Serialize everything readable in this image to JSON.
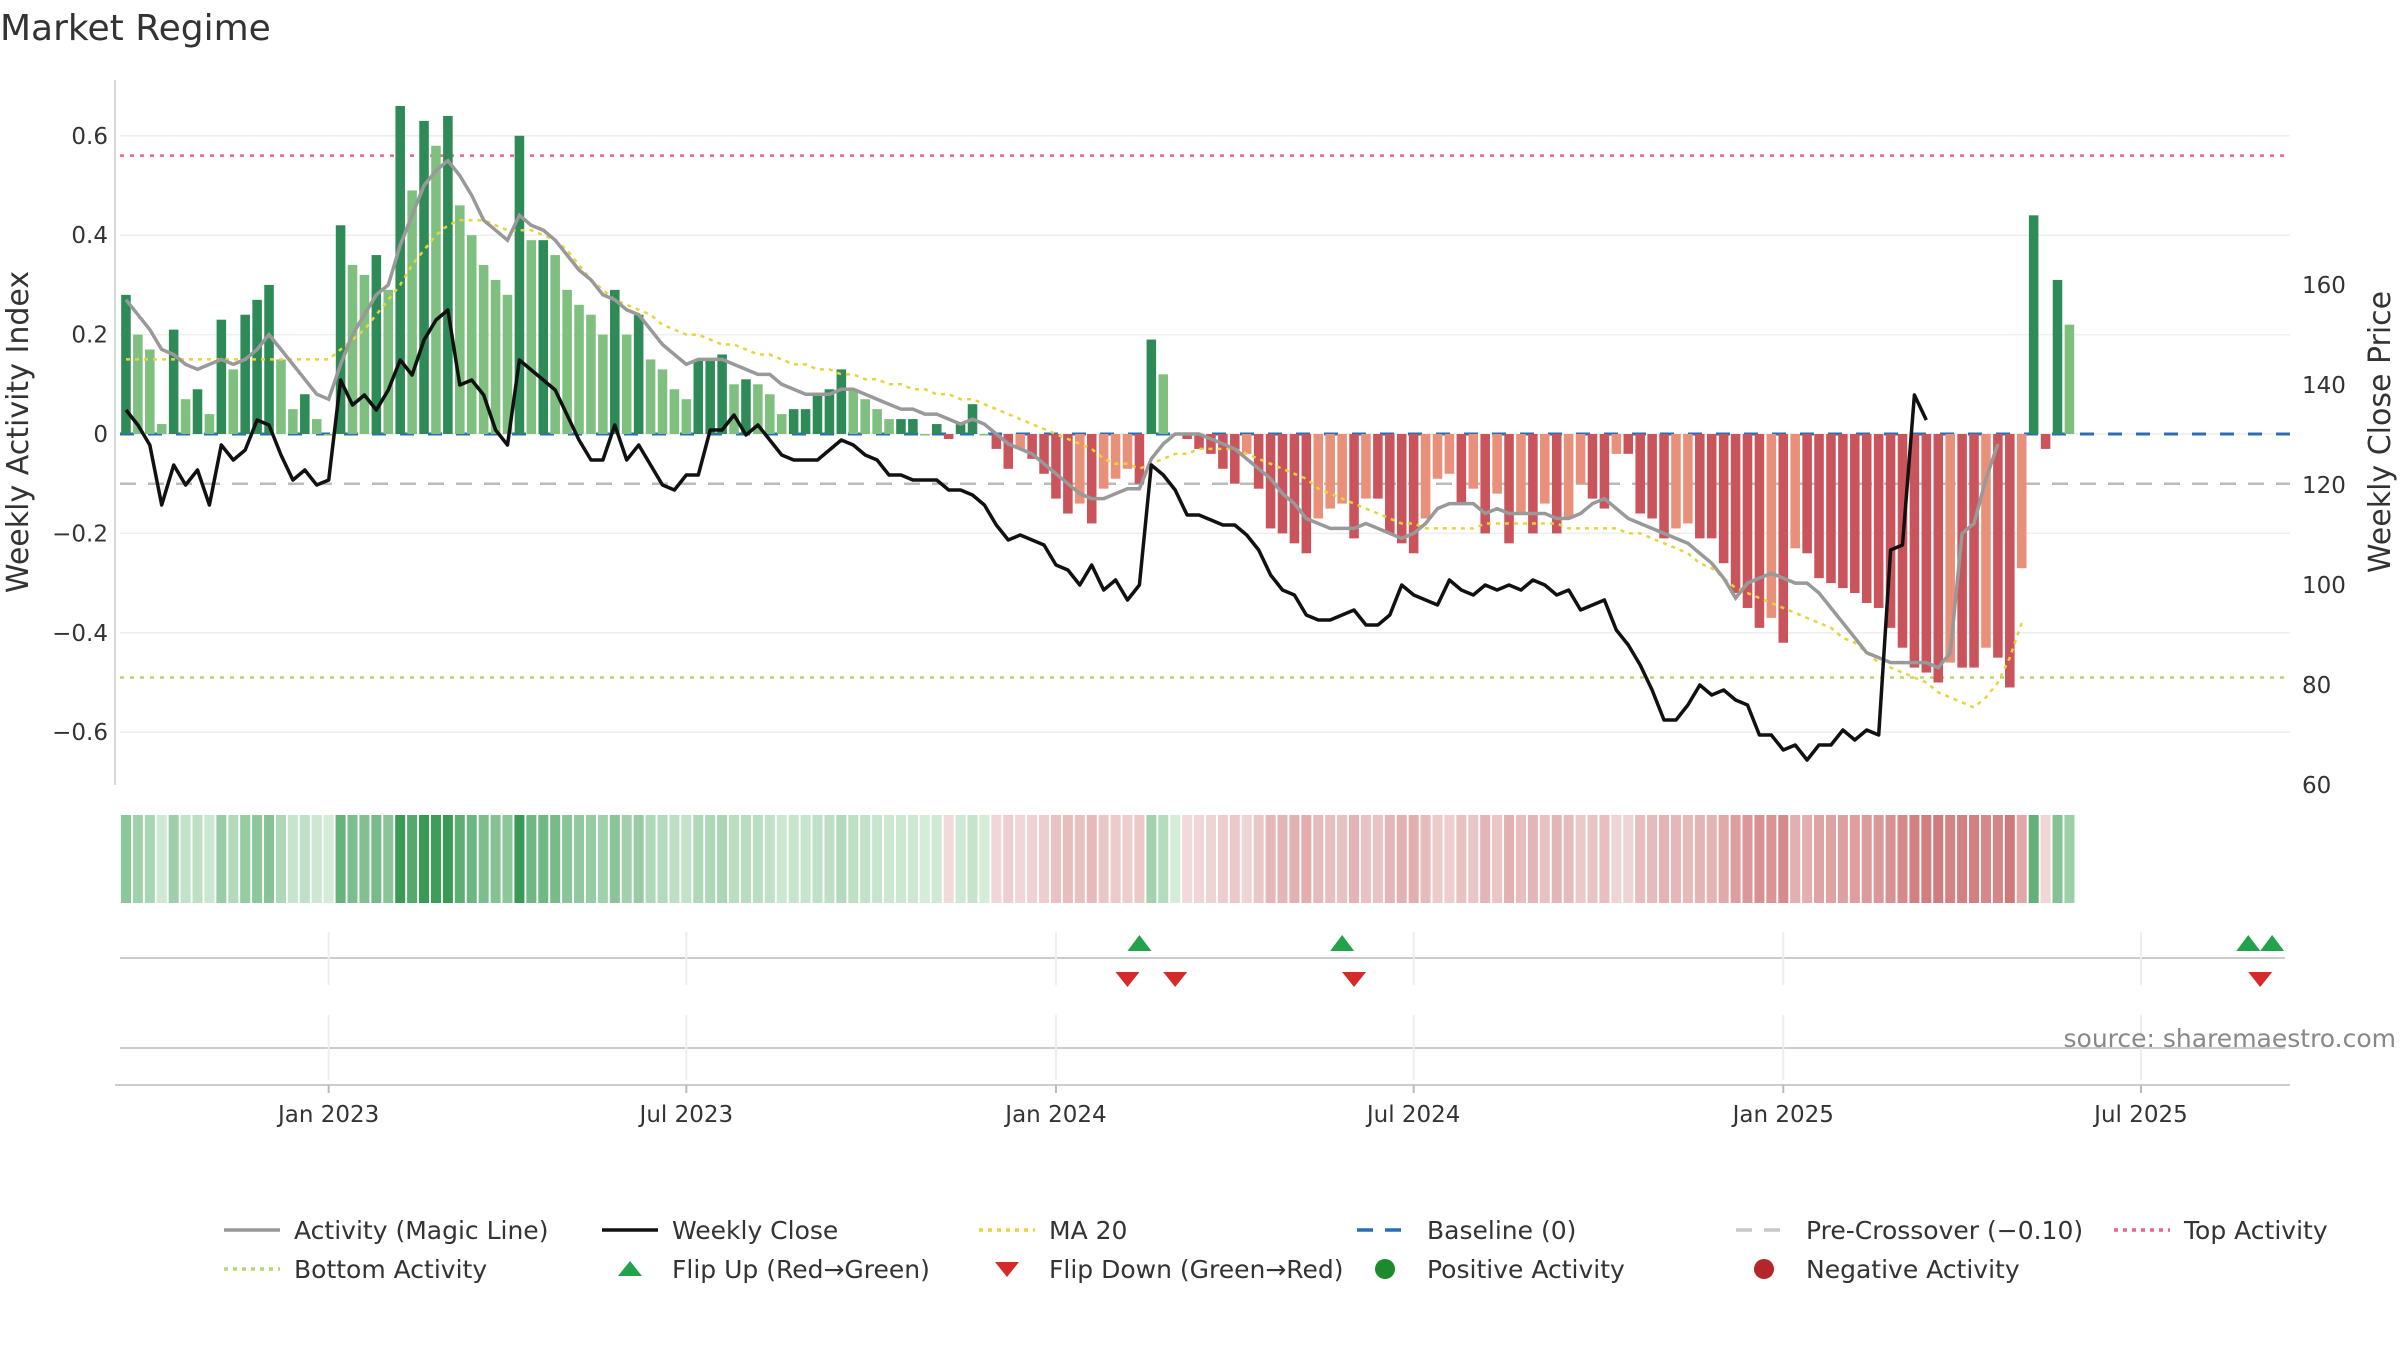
{
  "chart_data": {
    "type": "bar",
    "title": "Market Regime",
    "ylabel_left": "Weekly Activity Index",
    "ylabel_right": "Weekly Close Price",
    "y_left_range": [
      -0.71,
      0.71
    ],
    "y_right_range": [
      60,
      170
    ],
    "y_left_ticks": [
      "0.6",
      "0.4",
      "0.2",
      "0",
      "−0.2",
      "−0.4",
      "−0.6"
    ],
    "y_left_tick_values": [
      0.6,
      0.4,
      0.2,
      0,
      -0.2,
      -0.4,
      -0.6
    ],
    "y_right_ticks": [
      "160",
      "140",
      "120",
      "100",
      "80",
      "60"
    ],
    "y_right_tick_values": [
      160,
      140,
      120,
      100,
      80,
      60
    ],
    "x_ticks": [
      "Jan 2023",
      "Jul 2023",
      "Jan 2024",
      "Jul 2024",
      "Jan 2025",
      "Jul 2025"
    ],
    "x_tick_weeks": [
      17.5,
      47.5,
      78.5,
      108.5,
      139.5,
      169.5
    ],
    "week_count": 182,
    "reference_lines": {
      "top_activity": 0.56,
      "bottom_activity": -0.49,
      "pre_crossover": -0.1,
      "baseline": 0
    },
    "activity": [
      0.28,
      0.2,
      0.17,
      0.02,
      0.21,
      0.07,
      0.09,
      0.04,
      0.23,
      0.13,
      0.24,
      0.27,
      0.3,
      0.15,
      0.05,
      0.08,
      0.03,
      0.0,
      0.42,
      0.34,
      0.32,
      0.36,
      0.29,
      0.66,
      0.49,
      0.63,
      0.58,
      0.64,
      0.46,
      0.4,
      0.34,
      0.31,
      0.28,
      0.6,
      0.39,
      0.39,
      0.36,
      0.29,
      0.26,
      0.24,
      0.2,
      0.29,
      0.2,
      0.24,
      0.15,
      0.13,
      0.09,
      0.07,
      0.15,
      0.15,
      0.16,
      0.1,
      0.11,
      0.1,
      0.08,
      0.04,
      0.05,
      0.05,
      0.08,
      0.09,
      0.13,
      0.09,
      0.07,
      0.05,
      0.03,
      0.03,
      0.03,
      0.0,
      0.02,
      -0.01,
      0.02,
      0.06,
      0.0,
      -0.03,
      -0.07,
      -0.03,
      -0.05,
      -0.08,
      -0.13,
      -0.16,
      -0.14,
      -0.18,
      -0.11,
      -0.09,
      -0.07,
      -0.1,
      0.19,
      0.12,
      0.0,
      -0.01,
      -0.03,
      -0.04,
      -0.07,
      -0.1,
      -0.04,
      -0.11,
      -0.19,
      -0.2,
      -0.22,
      -0.24,
      -0.17,
      -0.15,
      -0.14,
      -0.21,
      -0.13,
      -0.13,
      -0.2,
      -0.22,
      -0.24,
      -0.17,
      -0.09,
      -0.08,
      -0.14,
      -0.11,
      -0.2,
      -0.12,
      -0.22,
      -0.16,
      -0.2,
      -0.14,
      -0.2,
      -0.17,
      -0.1,
      -0.13,
      -0.15,
      -0.04,
      -0.04,
      -0.16,
      -0.17,
      -0.21,
      -0.19,
      -0.18,
      -0.21,
      -0.21,
      -0.26,
      -0.32,
      -0.35,
      -0.39,
      -0.37,
      -0.42,
      -0.23,
      -0.24,
      -0.29,
      -0.3,
      -0.31,
      -0.32,
      -0.34,
      -0.35,
      -0.39,
      -0.43,
      -0.47,
      -0.48,
      -0.5,
      -0.46,
      -0.47,
      -0.47,
      -0.43,
      -0.45,
      -0.51,
      -0.27,
      0.44,
      -0.03,
      0.31,
      0.22
    ],
    "close": [
      135,
      132,
      128,
      116,
      124,
      120,
      123,
      116,
      128,
      125,
      127,
      133,
      132,
      126,
      121,
      123,
      120,
      121,
      141,
      136,
      138,
      135,
      139,
      145,
      142,
      149,
      153,
      155,
      140,
      141,
      138,
      131,
      128,
      145,
      143,
      141,
      139,
      134,
      129,
      125,
      125,
      132,
      125,
      128,
      124,
      120,
      119,
      122,
      122,
      131,
      131,
      134,
      130,
      132,
      129,
      126,
      125,
      125,
      125,
      127,
      129,
      128,
      126,
      125,
      122,
      122,
      121,
      121,
      121,
      119,
      119,
      118,
      116,
      112,
      109,
      110,
      109,
      108,
      104,
      103,
      100,
      104,
      99,
      101,
      97,
      100,
      124,
      122,
      119,
      114,
      114,
      113,
      112,
      112,
      110,
      107,
      102,
      99,
      98,
      94,
      93,
      93,
      94,
      95,
      92,
      92,
      94,
      100,
      98,
      97,
      96,
      101,
      99,
      98,
      100,
      99,
      100,
      99,
      101,
      100,
      98,
      99,
      95,
      96,
      97,
      91,
      88,
      84,
      79,
      73,
      73,
      76,
      80,
      78,
      79,
      77,
      76,
      70,
      70,
      67,
      68,
      65,
      68,
      68,
      71,
      69,
      71,
      70,
      107,
      108,
      138,
      133
    ],
    "magic_line": [
      0.27,
      0.24,
      0.21,
      0.17,
      0.16,
      0.14,
      0.13,
      0.14,
      0.15,
      0.14,
      0.15,
      0.17,
      0.2,
      0.17,
      0.14,
      0.11,
      0.08,
      0.07,
      0.14,
      0.2,
      0.24,
      0.28,
      0.3,
      0.38,
      0.44,
      0.5,
      0.53,
      0.55,
      0.52,
      0.48,
      0.43,
      0.41,
      0.39,
      0.44,
      0.42,
      0.41,
      0.39,
      0.36,
      0.33,
      0.31,
      0.28,
      0.27,
      0.25,
      0.24,
      0.21,
      0.18,
      0.16,
      0.14,
      0.15,
      0.15,
      0.15,
      0.14,
      0.13,
      0.12,
      0.12,
      0.1,
      0.09,
      0.08,
      0.08,
      0.08,
      0.09,
      0.09,
      0.08,
      0.07,
      0.06,
      0.05,
      0.05,
      0.04,
      0.04,
      0.03,
      0.02,
      0.03,
      0.02,
      0.0,
      -0.02,
      -0.03,
      -0.04,
      -0.06,
      -0.08,
      -0.1,
      -0.12,
      -0.13,
      -0.13,
      -0.12,
      -0.11,
      -0.11,
      -0.05,
      -0.02,
      0.0,
      0.0,
      0.0,
      -0.01,
      -0.02,
      -0.03,
      -0.05,
      -0.07,
      -0.09,
      -0.12,
      -0.14,
      -0.17,
      -0.18,
      -0.19,
      -0.19,
      -0.19,
      -0.18,
      -0.19,
      -0.2,
      -0.21,
      -0.2,
      -0.18,
      -0.15,
      -0.14,
      -0.14,
      -0.14,
      -0.16,
      -0.15,
      -0.16,
      -0.16,
      -0.16,
      -0.16,
      -0.17,
      -0.17,
      -0.16,
      -0.14,
      -0.13,
      -0.15,
      -0.17,
      -0.18,
      -0.19,
      -0.2,
      -0.21,
      -0.22,
      -0.24,
      -0.26,
      -0.29,
      -0.33,
      -0.3,
      -0.29,
      -0.28,
      -0.29,
      -0.3,
      -0.3,
      -0.32,
      -0.35,
      -0.38,
      -0.41,
      -0.44,
      -0.45,
      -0.46,
      -0.46,
      -0.46,
      -0.46,
      -0.47,
      -0.44,
      -0.2,
      -0.18,
      -0.09,
      -0.02
    ],
    "ma20": [
      0.15,
      0.15,
      0.15,
      0.15,
      0.15,
      0.15,
      0.15,
      0.15,
      0.15,
      0.15,
      0.15,
      0.15,
      0.15,
      0.15,
      0.15,
      0.15,
      0.15,
      0.15,
      0.17,
      0.19,
      0.21,
      0.24,
      0.27,
      0.3,
      0.34,
      0.37,
      0.4,
      0.42,
      0.43,
      0.43,
      0.43,
      0.42,
      0.41,
      0.41,
      0.41,
      0.4,
      0.39,
      0.37,
      0.34,
      0.31,
      0.29,
      0.27,
      0.26,
      0.25,
      0.24,
      0.22,
      0.21,
      0.2,
      0.2,
      0.19,
      0.18,
      0.18,
      0.17,
      0.16,
      0.16,
      0.15,
      0.14,
      0.14,
      0.13,
      0.13,
      0.12,
      0.12,
      0.11,
      0.11,
      0.1,
      0.1,
      0.09,
      0.09,
      0.08,
      0.08,
      0.07,
      0.07,
      0.06,
      0.05,
      0.04,
      0.03,
      0.02,
      0.01,
      0.0,
      -0.01,
      -0.02,
      -0.03,
      -0.05,
      -0.06,
      -0.06,
      -0.07,
      -0.06,
      -0.05,
      -0.04,
      -0.04,
      -0.03,
      -0.03,
      -0.03,
      -0.03,
      -0.04,
      -0.05,
      -0.06,
      -0.07,
      -0.08,
      -0.09,
      -0.11,
      -0.12,
      -0.13,
      -0.14,
      -0.15,
      -0.16,
      -0.17,
      -0.18,
      -0.18,
      -0.19,
      -0.19,
      -0.19,
      -0.19,
      -0.19,
      -0.18,
      -0.18,
      -0.18,
      -0.18,
      -0.18,
      -0.18,
      -0.18,
      -0.19,
      -0.19,
      -0.19,
      -0.19,
      -0.19,
      -0.2,
      -0.2,
      -0.21,
      -0.22,
      -0.23,
      -0.24,
      -0.26,
      -0.27,
      -0.29,
      -0.31,
      -0.32,
      -0.33,
      -0.34,
      -0.35,
      -0.36,
      -0.37,
      -0.38,
      -0.39,
      -0.41,
      -0.42,
      -0.44,
      -0.46,
      -0.47,
      -0.48,
      -0.49,
      -0.5,
      -0.52,
      -0.53,
      -0.54,
      -0.55,
      -0.53,
      -0.5,
      -0.45,
      -0.38
    ],
    "flip_up_weeks": [
      85,
      102,
      178,
      180
    ],
    "flip_down_weeks": [
      84,
      88,
      103,
      179
    ]
  },
  "source": "source: sharemaestro.com",
  "colors": {
    "pos_dark": "#2e8b57",
    "pos_light": "#7fbf7f",
    "neg_dark": "#c9545c",
    "neg_light": "#e8907a",
    "magic_line": "#999999",
    "close": "#111111",
    "ma20": "#e6d43a",
    "baseline": "#2a6fb5",
    "pre_crossover": "#bbbbbb",
    "top_activity": "#e8648a",
    "bottom_activity": "#b5d86f",
    "flip_up": "#22a34b",
    "flip_down": "#d42a2a",
    "positive_marker": "#1e8a2e",
    "negative_marker": "#b3262b"
  },
  "legend": [
    {
      "label": "Activity (Magic Line)",
      "kind": "line",
      "color": "#999999"
    },
    {
      "label": "Weekly Close",
      "kind": "line",
      "color": "#111111"
    },
    {
      "label": "MA 20",
      "kind": "dotted",
      "color": "#e6d43a"
    },
    {
      "label": "Baseline (0)",
      "kind": "dashed",
      "color": "#2a6fb5"
    },
    {
      "label": "Pre-Crossover (−0.10)",
      "kind": "dashed",
      "color": "#c8c8c8"
    },
    {
      "label": "Top Activity",
      "kind": "dotted",
      "color": "#e8648a"
    },
    {
      "label": "Bottom Activity",
      "kind": "dotted",
      "color": "#b5d86f"
    },
    {
      "label": "Flip Up (Red→Green)",
      "kind": "triangle-up",
      "color": "#22a34b"
    },
    {
      "label": "Flip Down (Green→Red)",
      "kind": "triangle-down",
      "color": "#d42a2a"
    },
    {
      "label": "Positive Activity",
      "kind": "circle",
      "color": "#1e8a2e"
    },
    {
      "label": "Negative Activity",
      "kind": "circle",
      "color": "#b3262b"
    }
  ]
}
